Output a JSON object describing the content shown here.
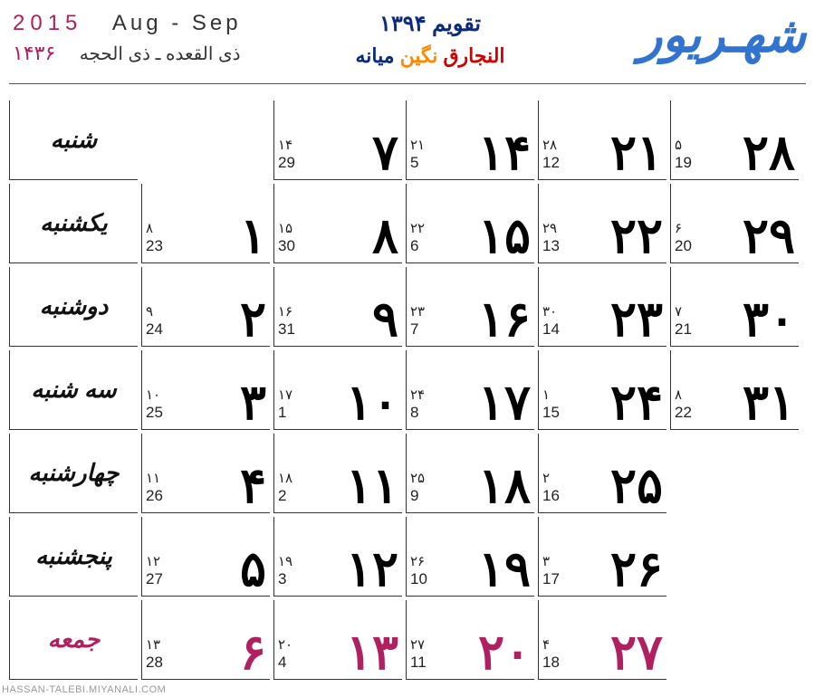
{
  "header": {
    "month_name": "شهـریور",
    "year_title": "تقویم ۱۳۹۴",
    "subtitle_1": "النجارق",
    "subtitle_2": "نگین",
    "subtitle_3": "میانه",
    "greg_year": "2015",
    "greg_months": "Aug - Sep",
    "hijri_year": "۱۴۳۶",
    "hijri_months": "ذی القعده ـ ذی الحجه"
  },
  "colors": {
    "month_name": "#3174d0",
    "year_title": "#0a2a80",
    "holiday": "#b02060",
    "normal": "#000000"
  },
  "days_of_week": [
    {
      "label": "شنبه",
      "holiday": false
    },
    {
      "label": "یکشنبه",
      "holiday": false
    },
    {
      "label": "دوشنبه",
      "holiday": false
    },
    {
      "label": "سه شنبه",
      "holiday": false
    },
    {
      "label": "چهارشنبه",
      "holiday": false
    },
    {
      "label": "پنجشنبه",
      "holiday": false
    },
    {
      "label": "جمعه",
      "holiday": true
    }
  ],
  "grid": [
    [
      null,
      {
        "p": "۷",
        "h": "۱۴",
        "g": "29",
        "hol": false
      },
      {
        "p": "۱۴",
        "h": "۲۱",
        "g": "5",
        "hol": false
      },
      {
        "p": "۲۱",
        "h": "۲۸",
        "g": "12",
        "hol": false
      },
      {
        "p": "۲۸",
        "h": "۵",
        "g": "19",
        "hol": false
      }
    ],
    [
      {
        "p": "۱",
        "h": "۸",
        "g": "23",
        "hol": false
      },
      {
        "p": "۸",
        "h": "۱۵",
        "g": "30",
        "hol": false
      },
      {
        "p": "۱۵",
        "h": "۲۲",
        "g": "6",
        "hol": false
      },
      {
        "p": "۲۲",
        "h": "۲۹",
        "g": "13",
        "hol": false
      },
      {
        "p": "۲۹",
        "h": "۶",
        "g": "20",
        "hol": false
      }
    ],
    [
      {
        "p": "۲",
        "h": "۹",
        "g": "24",
        "hol": false
      },
      {
        "p": "۹",
        "h": "۱۶",
        "g": "31",
        "hol": false
      },
      {
        "p": "۱۶",
        "h": "۲۳",
        "g": "7",
        "hol": false
      },
      {
        "p": "۲۳",
        "h": "۳۰",
        "g": "14",
        "hol": false
      },
      {
        "p": "۳۰",
        "h": "۷",
        "g": "21",
        "hol": false
      }
    ],
    [
      {
        "p": "۳",
        "h": "۱۰",
        "g": "25",
        "hol": false
      },
      {
        "p": "۱۰",
        "h": "۱۷",
        "g": "1",
        "hol": false
      },
      {
        "p": "۱۷",
        "h": "۲۴",
        "g": "8",
        "hol": false
      },
      {
        "p": "۲۴",
        "h": "۱",
        "g": "15",
        "hol": false
      },
      {
        "p": "۳۱",
        "h": "۸",
        "g": "22",
        "hol": false
      }
    ],
    [
      {
        "p": "۴",
        "h": "۱۱",
        "g": "26",
        "hol": false
      },
      {
        "p": "۱۱",
        "h": "۱۸",
        "g": "2",
        "hol": false
      },
      {
        "p": "۱۸",
        "h": "۲۵",
        "g": "9",
        "hol": false
      },
      {
        "p": "۲۵",
        "h": "۲",
        "g": "16",
        "hol": false
      },
      null
    ],
    [
      {
        "p": "۵",
        "h": "۱۲",
        "g": "27",
        "hol": false
      },
      {
        "p": "۱۲",
        "h": "۱۹",
        "g": "3",
        "hol": false
      },
      {
        "p": "۱۹",
        "h": "۲۶",
        "g": "10",
        "hol": false
      },
      {
        "p": "۲۶",
        "h": "۳",
        "g": "17",
        "hol": false
      },
      null
    ],
    [
      {
        "p": "۶",
        "h": "۱۳",
        "g": "28",
        "hol": true
      },
      {
        "p": "۱۳",
        "h": "۲۰",
        "g": "4",
        "hol": true
      },
      {
        "p": "۲۰",
        "h": "۲۷",
        "g": "11",
        "hol": true
      },
      {
        "p": "۲۷",
        "h": "۴",
        "g": "18",
        "hol": true
      },
      null
    ]
  ],
  "footer": "HASSAN-TALEBI.MIYANALI.COM"
}
